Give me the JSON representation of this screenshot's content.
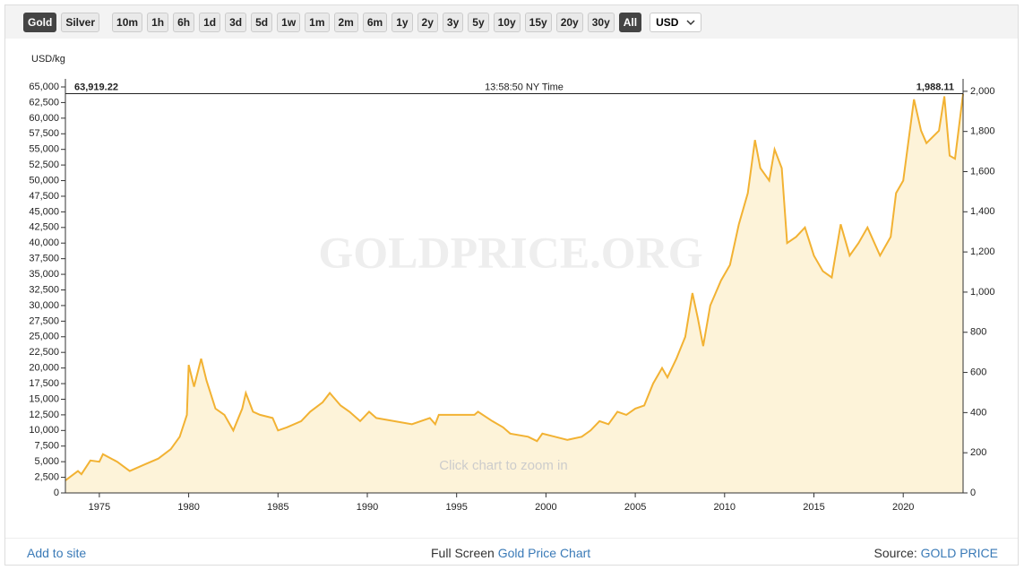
{
  "toolbar": {
    "buttons": [
      "Gold",
      "Silver",
      "10m",
      "1h",
      "6h",
      "1d",
      "3d",
      "5d",
      "1w",
      "1m",
      "2m",
      "6m",
      "1y",
      "2y",
      "3y",
      "5y",
      "10y",
      "15y",
      "20y",
      "30y",
      "All"
    ],
    "active": [
      "Gold",
      "All"
    ],
    "currency": "USD"
  },
  "chart_data": {
    "type": "line",
    "y_label": "USD/kg",
    "watermark": "GOLDPRICE.ORG",
    "hint": "Click chart to zoom in",
    "crosshair": {
      "value": 63919.22,
      "label": "63,919.22",
      "time": "13:58:50 NY Time",
      "y2_value": 1988.11,
      "y2_label": "1,988.11"
    },
    "xlim": [
      1973.1,
      2023.35
    ],
    "xticks": [
      1975,
      1980,
      1985,
      1990,
      1995,
      2000,
      2005,
      2010,
      2015,
      2020
    ],
    "ylim": [
      0,
      65000
    ],
    "yticks": [
      0,
      {
        "value": 2500,
        "label": "2,500"
      },
      {
        "value": 5000,
        "label": "5,000"
      },
      {
        "value": 7500,
        "label": "7,500"
      },
      {
        "value": 10000,
        "label": "10,000"
      },
      {
        "value": 12500,
        "label": "12,500"
      },
      {
        "value": 15000,
        "label": "15,000"
      },
      {
        "value": 17500,
        "label": "17,500"
      },
      {
        "value": 20000,
        "label": "20,000"
      },
      {
        "value": 22500,
        "label": "22,500"
      },
      {
        "value": 25000,
        "label": "25,000"
      },
      {
        "value": 27500,
        "label": "27,500"
      },
      {
        "value": 30000,
        "label": "30,000"
      },
      {
        "value": 32500,
        "label": "32,500"
      },
      {
        "value": 35000,
        "label": "35,000"
      },
      {
        "value": 37500,
        "label": "37,500"
      },
      {
        "value": 40000,
        "label": "40,000"
      },
      {
        "value": 42500,
        "label": "42,500"
      },
      {
        "value": 45000,
        "label": "45,000"
      },
      {
        "value": 47500,
        "label": "47,500"
      },
      {
        "value": 50000,
        "label": "50,000"
      },
      {
        "value": 52500,
        "label": "52,500"
      },
      {
        "value": 55000,
        "label": "55,000"
      },
      {
        "value": 57500,
        "label": "57,500"
      },
      {
        "value": 60000,
        "label": "60,000"
      },
      {
        "value": 62500,
        "label": "62,500"
      },
      {
        "value": 65000,
        "label": "65,000"
      }
    ],
    "y2lim": [
      0,
      2021.7
    ],
    "y2ticks": [
      0,
      200,
      400,
      600,
      800,
      {
        "value": 1000,
        "label": "1,000"
      },
      {
        "value": 1200,
        "label": "1,200"
      },
      {
        "value": 1400,
        "label": "1,400"
      },
      {
        "value": 1600,
        "label": "1,600"
      },
      {
        "value": 1800,
        "label": "1,800"
      },
      {
        "value": 2000,
        "label": "2,000"
      }
    ],
    "series": [
      {
        "name": "Gold",
        "color": "#f2b233",
        "fill": "#fdf3d9",
        "x": [
          1973.1,
          1973.8,
          1974.0,
          1974.5,
          1975.0,
          1975.2,
          1976.0,
          1976.7,
          1977.5,
          1978.3,
          1979.0,
          1979.5,
          1979.9,
          1980.0,
          1980.3,
          1980.7,
          1981.0,
          1981.5,
          1982.0,
          1982.5,
          1983.0,
          1983.2,
          1983.6,
          1984.0,
          1984.7,
          1985.0,
          1985.5,
          1986.3,
          1986.8,
          1987.5,
          1987.9,
          1988.5,
          1989.0,
          1989.6,
          1990.1,
          1990.5,
          1991.5,
          1992.5,
          1993.5,
          1993.8,
          1994.0,
          1995.0,
          1996.0,
          1996.2,
          1997.0,
          1997.6,
          1998.0,
          1999.0,
          1999.5,
          1999.8,
          2000.5,
          2001.2,
          2002.0,
          2002.5,
          2003.0,
          2003.5,
          2004.0,
          2004.5,
          2005.0,
          2005.5,
          2006.0,
          2006.5,
          2006.8,
          2007.3,
          2007.8,
          2008.2,
          2008.5,
          2008.8,
          2009.2,
          2009.8,
          2010.3,
          2010.8,
          2011.3,
          2011.7,
          2012.0,
          2012.5,
          2012.8,
          2013.2,
          2013.5,
          2014.0,
          2014.5,
          2015.0,
          2015.5,
          2016.0,
          2016.5,
          2017.0,
          2017.5,
          2018.0,
          2018.7,
          2019.3,
          2019.6,
          2020.0,
          2020.6,
          2021.0,
          2021.3,
          2022.0,
          2022.3,
          2022.6,
          2022.9,
          2023.35
        ],
        "values": [
          2000,
          3500,
          3000,
          5200,
          5000,
          6200,
          5000,
          3500,
          4500,
          5500,
          7000,
          9000,
          12500,
          20500,
          17000,
          21500,
          18000,
          13500,
          12500,
          10000,
          13500,
          16000,
          13000,
          12500,
          12000,
          10000,
          10500,
          11500,
          13000,
          14500,
          16000,
          14000,
          13000,
          11500,
          13000,
          12000,
          11500,
          11000,
          12000,
          11000,
          12500,
          12500,
          12500,
          13000,
          11500,
          10500,
          9500,
          9000,
          8300,
          9500,
          9000,
          8500,
          9000,
          10000,
          11500,
          11000,
          13000,
          12500,
          13500,
          14000,
          17500,
          20000,
          18500,
          21500,
          25000,
          32000,
          28000,
          23500,
          30000,
          34000,
          36500,
          43000,
          48000,
          56500,
          52000,
          50000,
          55000,
          52000,
          40000,
          41000,
          42500,
          38000,
          35500,
          34500,
          43000,
          38000,
          40000,
          42500,
          38000,
          41000,
          48000,
          50000,
          63000,
          58000,
          56000,
          58000,
          63500,
          54000,
          53500,
          63900
        ]
      }
    ]
  },
  "footer": {
    "add": "Add to site",
    "full": "Full Screen",
    "chart_link": "Gold Price Chart",
    "source": "Source:",
    "source_link": "GOLD PRICE"
  }
}
